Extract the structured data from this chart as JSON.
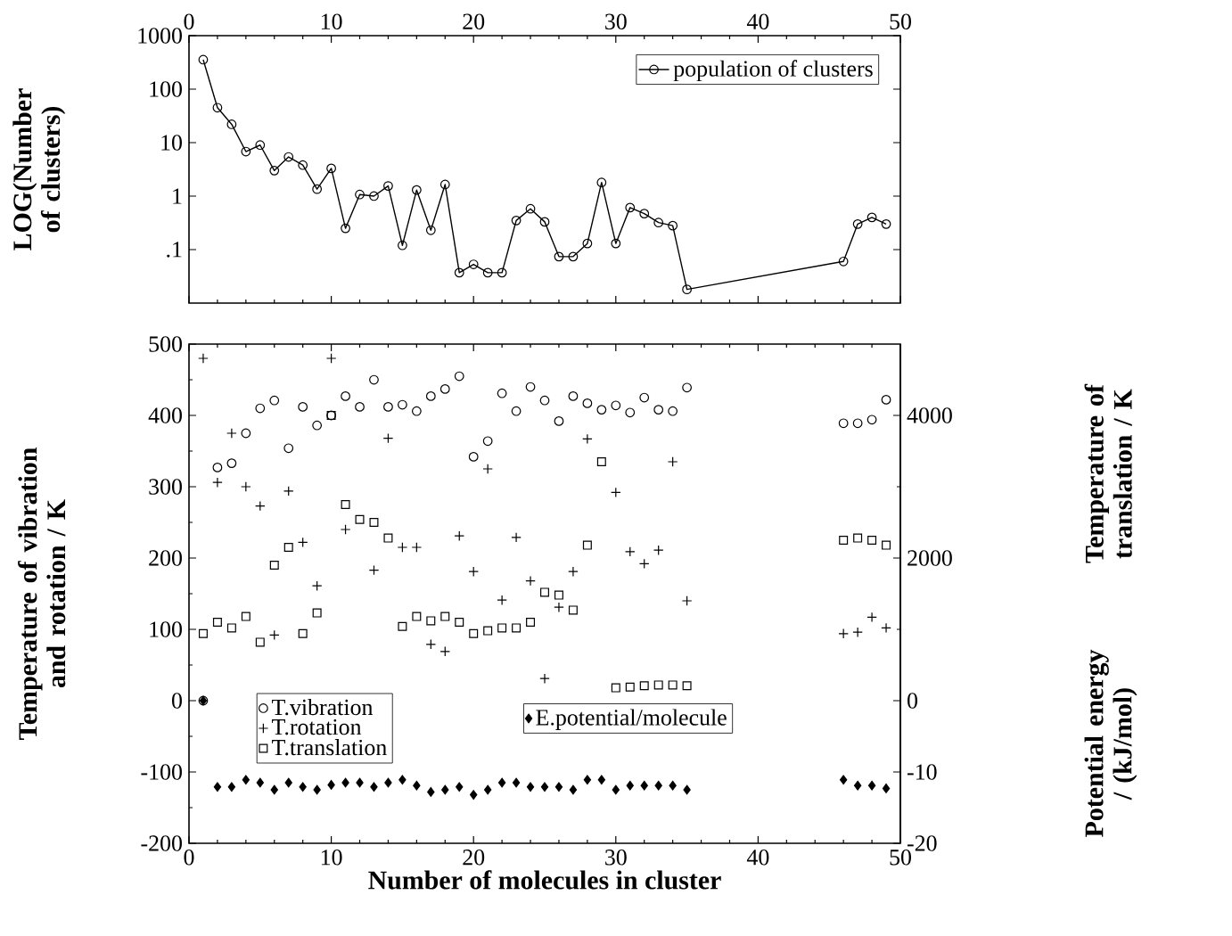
{
  "chart_data": [
    {
      "type": "line",
      "ylabel": "LOG(Number of clusters)",
      "log": "y",
      "ylim": [
        0.01,
        1000
      ],
      "yticks": [
        {
          "value": 0.1,
          "label": ".1"
        },
        1,
        10,
        100,
        1000
      ],
      "xlim": [
        0,
        50
      ],
      "xticks": [
        0,
        10,
        20,
        30,
        40,
        50
      ],
      "marker": "circle",
      "legend": "top right",
      "series": [
        {
          "name": "population of clusters",
          "color": "#000000",
          "x": [
            1,
            2,
            3,
            4,
            5,
            6,
            7,
            8,
            9,
            10,
            11,
            12,
            13,
            14,
            15,
            16,
            17,
            18,
            19,
            20,
            21,
            22,
            23,
            24,
            25,
            26,
            27,
            28,
            29,
            30,
            31,
            32,
            33,
            34,
            35,
            46,
            47,
            48,
            49
          ],
          "values": [
            355,
            45,
            22,
            6.8,
            9,
            3,
            5.4,
            3.8,
            1.35,
            3.3,
            0.25,
            1.07,
            1.0,
            1.55,
            0.12,
            1.3,
            0.23,
            1.65,
            0.037,
            0.053,
            0.037,
            0.037,
            0.35,
            0.58,
            0.33,
            0.074,
            0.074,
            0.13,
            1.8,
            0.13,
            0.61,
            0.47,
            0.32,
            0.28,
            0.018,
            0.06,
            0.3,
            0.4,
            0.3
          ]
        }
      ]
    },
    {
      "type": "scatter",
      "xlabel": "Number of molecules in cluster",
      "ylabel": "Temperature of vibration and rotation / K",
      "y2label": "Temperature of translation / K",
      "y3label": "Potential energy / (kJ/mol)",
      "xlim": [
        0,
        50
      ],
      "xticks": [
        0,
        10,
        20,
        30,
        40,
        50
      ],
      "ylim": [
        -200,
        500
      ],
      "yticks": [
        -200,
        -100,
        0,
        100,
        200,
        300,
        400,
        500
      ],
      "y2lim": [
        -2000,
        5000
      ],
      "y2ticks": [
        0,
        2000,
        4000
      ],
      "y3lim": [
        -20,
        50
      ],
      "y3ticks": [
        -20,
        -10
      ],
      "legend": "bottom left",
      "series": [
        {
          "name": "T.vibration",
          "color": "#000000",
          "marker": "circle",
          "x": [
            1,
            2,
            3,
            4,
            5,
            6,
            7,
            8,
            9,
            10,
            11,
            12,
            13,
            14,
            15,
            16,
            17,
            18,
            19,
            20,
            21,
            22,
            23,
            24,
            25,
            26,
            27,
            28,
            29,
            30,
            31,
            32,
            33,
            34,
            35,
            46,
            47,
            48,
            49
          ],
          "values": [
            0,
            327,
            333,
            375,
            410,
            421,
            354,
            412,
            386,
            400,
            427,
            412,
            450,
            412,
            415,
            406,
            427,
            437,
            455,
            342,
            364,
            431,
            406,
            440,
            421,
            392,
            427,
            417,
            408,
            414,
            404,
            425,
            408,
            406,
            439,
            389,
            389,
            394,
            422
          ]
        },
        {
          "name": "T.rotation",
          "color": "#000000",
          "marker": "cross",
          "x": [
            1,
            2,
            3,
            4,
            5,
            6,
            7,
            8,
            9,
            10,
            11,
            12,
            13,
            14,
            15,
            16,
            17,
            18,
            19,
            20,
            21,
            22,
            23,
            24,
            25,
            26,
            27,
            28,
            29,
            30,
            31,
            32,
            33,
            34,
            35,
            46,
            47,
            48,
            49
          ],
          "values": [
            480,
            306,
            375,
            300,
            273,
            92,
            294,
            222,
            161,
            480,
            240,
            null,
            183,
            368,
            215,
            215,
            79,
            69,
            231,
            181,
            325,
            141,
            229,
            168,
            31,
            131,
            181,
            367,
            null,
            292,
            209,
            192,
            211,
            335,
            140,
            94,
            96,
            117,
            102
          ]
        },
        {
          "name": "T.translation",
          "color": "#000000",
          "marker": "square",
          "axis": "y2",
          "x": [
            1,
            2,
            3,
            4,
            5,
            6,
            7,
            8,
            9,
            10,
            11,
            12,
            13,
            14,
            15,
            16,
            17,
            18,
            19,
            20,
            21,
            22,
            23,
            24,
            25,
            26,
            27,
            28,
            29,
            30,
            31,
            32,
            33,
            34,
            35,
            46,
            47,
            48,
            49
          ],
          "values": [
            940,
            1100,
            1020,
            1180,
            820,
            1900,
            2150,
            940,
            1230,
            4000,
            2750,
            2540,
            2500,
            2280,
            1040,
            1180,
            1120,
            1180,
            1100,
            940,
            980,
            1020,
            1020,
            1100,
            1520,
            1480,
            1270,
            2180,
            3350,
            180,
            190,
            210,
            220,
            220,
            210,
            2250,
            2280,
            2250,
            2180
          ]
        },
        {
          "name": "E.potential/molecule",
          "color": "#000000",
          "marker": "diamond",
          "axis": "y3",
          "x": [
            1,
            2,
            3,
            4,
            5,
            6,
            7,
            8,
            9,
            10,
            11,
            12,
            13,
            14,
            15,
            16,
            17,
            18,
            19,
            20,
            21,
            22,
            23,
            24,
            25,
            26,
            27,
            28,
            29,
            30,
            31,
            32,
            33,
            34,
            35,
            46,
            47,
            48,
            49
          ],
          "values": [
            0,
            -12.1,
            -12.1,
            -11.1,
            -11.5,
            -12.5,
            -11.5,
            -12.1,
            -12.5,
            -11.8,
            -11.5,
            -11.5,
            -12.1,
            -11.5,
            -11.1,
            -11.9,
            -12.8,
            -12.5,
            -12.1,
            -13.2,
            -12.5,
            -11.5,
            -11.5,
            -12.1,
            -12.1,
            -12.1,
            -12.5,
            -11.1,
            -11.1,
            -12.5,
            -11.9,
            -11.9,
            -11.9,
            -11.9,
            -12.5,
            -11.1,
            -11.9,
            -11.9,
            -12.3
          ]
        }
      ]
    }
  ]
}
